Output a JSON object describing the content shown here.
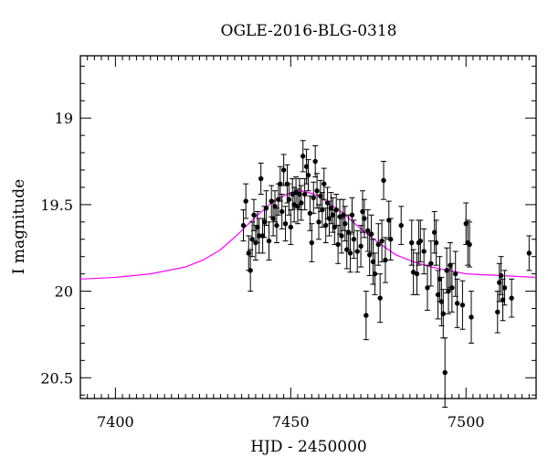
{
  "chart_data": {
    "type": "scatter",
    "title": "OGLE-2016-BLG-0318",
    "xlabel": "HJD - 2450000",
    "ylabel": "I magnitude",
    "xlim": [
      7390,
      7520
    ],
    "ylim": [
      20.62,
      18.64
    ],
    "y_inverted": true,
    "x_ticks": [
      7400,
      7450,
      7500
    ],
    "y_ticks": [
      19,
      19.5,
      20,
      20.5
    ],
    "x_tick_labels": [
      "7400",
      "7450",
      "7500"
    ],
    "y_tick_labels": [
      "19",
      "19.5",
      "20",
      "20.5"
    ],
    "grid": false,
    "colors": {
      "points": "#000000",
      "model": "#ff00ff"
    },
    "model": {
      "name": "",
      "x": [
        7390,
        7400,
        7410,
        7420,
        7425,
        7430,
        7435,
        7440,
        7445,
        7450,
        7453,
        7455,
        7458,
        7460,
        7465,
        7470,
        7475,
        7480,
        7485,
        7490,
        7500,
        7510,
        7520
      ],
      "y": [
        19.93,
        19.92,
        19.9,
        19.86,
        19.82,
        19.76,
        19.67,
        19.57,
        19.48,
        19.43,
        19.42,
        19.43,
        19.45,
        19.48,
        19.55,
        19.64,
        19.72,
        19.79,
        19.83,
        19.86,
        19.9,
        19.91,
        19.92
      ]
    },
    "series": [
      {
        "name": "",
        "points": [
          [
            7436.5,
            19.62,
            0.09
          ],
          [
            7437.2,
            19.48,
            0.1
          ],
          [
            7438.0,
            19.78,
            0.1
          ],
          [
            7438.5,
            19.88,
            0.12
          ],
          [
            7439.0,
            19.7,
            0.1
          ],
          [
            7439.5,
            19.56,
            0.09
          ],
          [
            7440.0,
            19.72,
            0.1
          ],
          [
            7440.5,
            19.63,
            0.09
          ],
          [
            7441.0,
            19.68,
            0.1
          ],
          [
            7441.5,
            19.35,
            0.09
          ],
          [
            7442.0,
            19.68,
            0.1
          ],
          [
            7442.5,
            19.6,
            0.09
          ],
          [
            7443.0,
            19.52,
            0.1
          ],
          [
            7443.8,
            19.71,
            0.11
          ],
          [
            7444.5,
            19.48,
            0.09
          ],
          [
            7445.0,
            19.58,
            0.1
          ],
          [
            7445.5,
            19.51,
            0.09
          ],
          [
            7446.0,
            19.62,
            0.1
          ],
          [
            7446.5,
            19.47,
            0.09
          ],
          [
            7447.0,
            19.38,
            0.1
          ],
          [
            7447.5,
            19.54,
            0.1
          ],
          [
            7448.0,
            19.3,
            0.09
          ],
          [
            7448.5,
            19.61,
            0.1
          ],
          [
            7449.0,
            19.38,
            0.11
          ],
          [
            7449.5,
            19.47,
            0.09
          ],
          [
            7450.0,
            19.63,
            0.1
          ],
          [
            7450.5,
            19.44,
            0.09
          ],
          [
            7451.0,
            19.5,
            0.1
          ],
          [
            7451.5,
            19.43,
            0.09
          ],
          [
            7452.0,
            19.51,
            0.1
          ],
          [
            7452.5,
            19.44,
            0.09
          ],
          [
            7453.0,
            19.49,
            0.1
          ],
          [
            7453.5,
            19.22,
            0.09
          ],
          [
            7454.0,
            19.44,
            0.09
          ],
          [
            7454.5,
            19.28,
            0.1
          ],
          [
            7455.0,
            19.33,
            0.09
          ],
          [
            7455.5,
            19.55,
            0.1
          ],
          [
            7456.0,
            19.72,
            0.11
          ],
          [
            7456.5,
            19.46,
            0.09
          ],
          [
            7457.0,
            19.25,
            0.09
          ],
          [
            7457.5,
            19.42,
            0.1
          ],
          [
            7458.0,
            19.6,
            0.1
          ],
          [
            7458.5,
            19.45,
            0.09
          ],
          [
            7459.0,
            19.53,
            0.1
          ],
          [
            7459.5,
            19.38,
            0.09
          ],
          [
            7460.0,
            19.62,
            0.1
          ],
          [
            7460.5,
            19.49,
            0.09
          ],
          [
            7461.0,
            19.58,
            0.1
          ],
          [
            7461.5,
            19.52,
            0.09
          ],
          [
            7462.0,
            19.56,
            0.1
          ],
          [
            7462.5,
            19.63,
            0.1
          ],
          [
            7463.0,
            19.53,
            0.09
          ],
          [
            7463.5,
            19.73,
            0.11
          ],
          [
            7464.0,
            19.57,
            0.1
          ],
          [
            7464.5,
            19.68,
            0.1
          ],
          [
            7465.0,
            19.56,
            0.09
          ],
          [
            7465.5,
            19.61,
            0.1
          ],
          [
            7466.0,
            19.76,
            0.11
          ],
          [
            7466.5,
            19.66,
            0.1
          ],
          [
            7467.0,
            19.78,
            0.11
          ],
          [
            7467.5,
            19.56,
            0.1
          ],
          [
            7468.0,
            19.7,
            0.11
          ],
          [
            7469.0,
            19.77,
            0.12
          ],
          [
            7470.0,
            19.74,
            0.12
          ],
          [
            7470.5,
            19.54,
            0.12
          ],
          [
            7471.0,
            19.58,
            0.11
          ],
          [
            7471.5,
            20.14,
            0.14
          ],
          [
            7472.0,
            19.65,
            0.12
          ],
          [
            7472.5,
            19.79,
            0.12
          ],
          [
            7473.0,
            19.67,
            0.11
          ],
          [
            7473.5,
            19.83,
            0.13
          ],
          [
            7474.0,
            19.9,
            0.12
          ],
          [
            7475.0,
            19.73,
            0.12
          ],
          [
            7475.5,
            20.04,
            0.14
          ],
          [
            7476.0,
            19.71,
            0.12
          ],
          [
            7476.5,
            19.36,
            0.11
          ],
          [
            7477.0,
            19.82,
            0.13
          ],
          [
            7478.0,
            19.59,
            0.11
          ],
          [
            7478.5,
            19.7,
            0.12
          ],
          [
            7481.5,
            19.62,
            0.11
          ],
          [
            7484.5,
            19.72,
            0.13
          ],
          [
            7485.0,
            19.89,
            0.13
          ],
          [
            7486.0,
            19.9,
            0.12
          ],
          [
            7486.5,
            19.72,
            0.13
          ],
          [
            7487.0,
            19.71,
            0.12
          ],
          [
            7488.0,
            19.77,
            0.13
          ],
          [
            7489.0,
            19.98,
            0.13
          ],
          [
            7490.0,
            19.84,
            0.13
          ],
          [
            7491.0,
            19.66,
            0.12
          ],
          [
            7491.5,
            19.72,
            0.13
          ],
          [
            7492.0,
            20.02,
            0.14
          ],
          [
            7492.5,
            19.93,
            0.13
          ],
          [
            7493.0,
            20.06,
            0.14
          ],
          [
            7493.5,
            20.13,
            0.14
          ],
          [
            7494.0,
            20.47,
            0.2
          ],
          [
            7494.5,
            19.88,
            0.13
          ],
          [
            7495.0,
            20.0,
            0.13
          ],
          [
            7495.5,
            19.85,
            0.13
          ],
          [
            7496.0,
            19.98,
            0.14
          ],
          [
            7497.0,
            19.9,
            0.13
          ],
          [
            7497.5,
            20.07,
            0.14
          ],
          [
            7499.0,
            20.08,
            0.14
          ],
          [
            7500.0,
            19.61,
            0.12
          ],
          [
            7500.5,
            19.72,
            0.13
          ],
          [
            7501.0,
            19.73,
            0.13
          ],
          [
            7501.5,
            20.15,
            0.15
          ],
          [
            7509.0,
            20.12,
            0.12
          ],
          [
            7509.5,
            19.95,
            0.11
          ],
          [
            7510.0,
            19.91,
            0.11
          ],
          [
            7510.5,
            20.05,
            0.12
          ],
          [
            7511.0,
            19.98,
            0.1
          ],
          [
            7513.0,
            20.04,
            0.11
          ],
          [
            7518.0,
            19.78,
            0.1
          ]
        ]
      }
    ]
  }
}
